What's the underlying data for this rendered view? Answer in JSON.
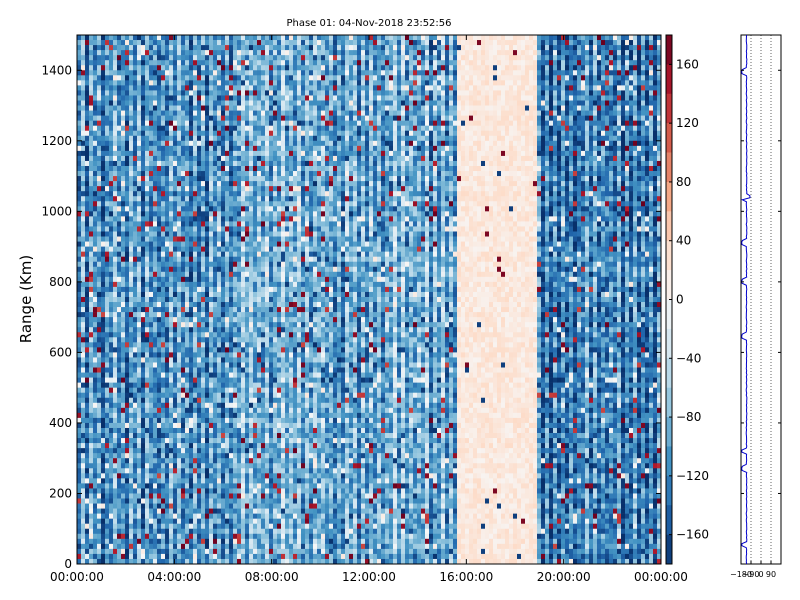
{
  "chart_data": {
    "type": "heatmap",
    "title": "Phase 01: 04-Nov-2018 23:52:56",
    "ylabel": "Range (Km)",
    "xlabel": "",
    "x_ticks": [
      "00:00:00",
      "04:00:00",
      "08:00:00",
      "12:00:00",
      "16:00:00",
      "20:00:00",
      "00:00:00"
    ],
    "x_range_hours": [
      0,
      24
    ],
    "y_ticks": [
      0,
      200,
      400,
      600,
      800,
      1000,
      1200,
      1400
    ],
    "ylim": [
      0,
      1500
    ],
    "colorbar": {
      "ticks": [
        160,
        120,
        80,
        40,
        0,
        -40,
        -80,
        -120,
        -160
      ],
      "range": [
        -180,
        180
      ],
      "colormap": "RdBu_r",
      "colors": [
        "#08306b",
        "#2166ac",
        "#4393c3",
        "#92c5de",
        "#d1e5f0",
        "#f7f7f7",
        "#fddbc7",
        "#f4a582",
        "#d6604d",
        "#b2182b",
        "#67001f"
      ]
    },
    "phase_regimes": [
      {
        "start_hour": 0,
        "end_hour": 6.5,
        "typical_phase": -110
      },
      {
        "start_hour": 6.5,
        "end_hour": 15.6,
        "typical_phase": -90
      },
      {
        "start_hour": 15.6,
        "end_hour": 18.9,
        "typical_phase": 20
      },
      {
        "start_hour": 18.9,
        "end_hour": 24,
        "typical_phase": -120
      }
    ],
    "side_panel": {
      "x_ticks": [
        "-180",
        "-90",
        "0",
        "90"
      ],
      "x_range": [
        -180,
        180
      ],
      "profile_phase": -130,
      "ylim": [
        0,
        1500
      ]
    },
    "grid": false
  }
}
